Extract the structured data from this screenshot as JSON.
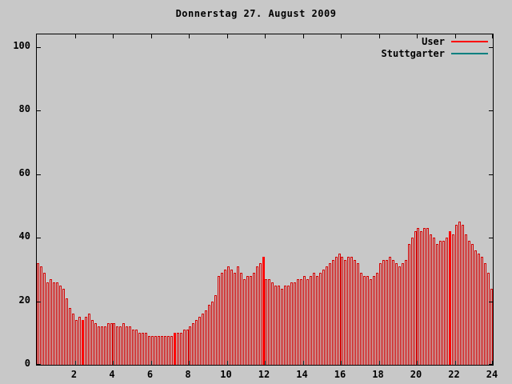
{
  "chart_data": {
    "type": "bar",
    "title": "Donnerstag 27. August 2009",
    "xlabel": "",
    "ylabel": "",
    "x_unit": "hour of day",
    "interval_minutes": 10,
    "xlim": [
      0,
      24
    ],
    "ylim": [
      0,
      104
    ],
    "xticks": [
      2,
      4,
      6,
      8,
      10,
      12,
      14,
      16,
      18,
      20,
      22,
      24
    ],
    "yticks": [
      0,
      20,
      40,
      60,
      80,
      100
    ],
    "grid": false,
    "legend_position": "top-right",
    "series": [
      {
        "name": "User",
        "color": "#ff0000",
        "values": [
          32,
          31,
          29,
          26,
          27,
          26,
          26,
          25,
          24,
          21,
          18,
          16,
          14,
          15,
          14,
          15,
          16,
          14,
          13,
          12,
          12,
          12,
          13,
          13,
          13,
          12,
          12,
          13,
          12,
          12,
          11,
          11,
          10,
          10,
          10,
          9,
          9,
          9,
          9,
          9,
          9,
          9,
          9,
          10,
          10,
          10,
          11,
          11,
          12,
          13,
          14,
          15,
          16,
          17,
          19,
          20,
          22,
          28,
          29,
          30,
          31,
          30,
          29,
          31,
          29,
          27,
          28,
          28,
          29,
          31,
          32,
          34,
          27,
          27,
          26,
          25,
          25,
          24,
          25,
          25,
          26,
          26,
          27,
          27,
          28,
          27,
          28,
          29,
          28,
          29,
          30,
          31,
          32,
          33,
          34,
          35,
          34,
          33,
          34,
          34,
          33,
          32,
          29,
          28,
          28,
          27,
          28,
          29,
          32,
          33,
          33,
          34,
          33,
          32,
          31,
          32,
          33,
          38,
          40,
          42,
          43,
          42,
          43,
          43,
          41,
          40,
          38,
          39,
          39,
          40,
          42,
          41,
          44,
          45,
          44,
          41,
          39,
          38,
          36,
          35,
          34,
          32,
          29,
          24
        ]
      },
      {
        "name": "Stuttgarter",
        "color": "#008080",
        "values": []
      }
    ],
    "highlight_indices": [
      14,
      43,
      71,
      130
    ]
  }
}
